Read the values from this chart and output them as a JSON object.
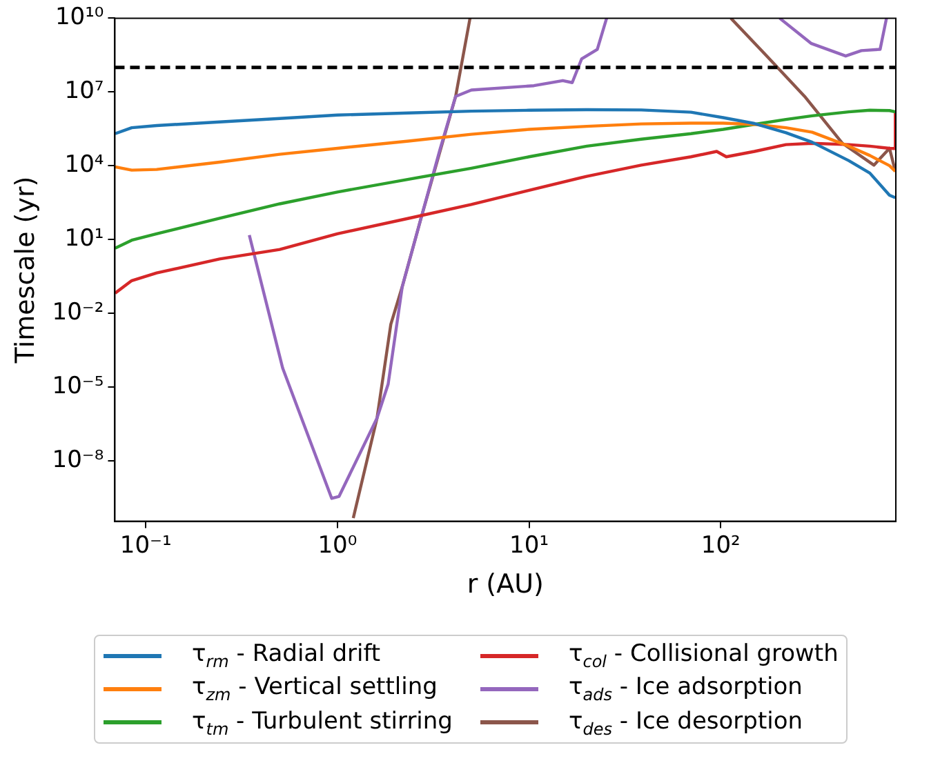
{
  "chart_data": {
    "type": "line",
    "xlabel": "r (AU)",
    "ylabel": "Timescale (yr)",
    "log": "xy",
    "grid": false,
    "legend": "bottom",
    "marker": "none",
    "line_style": "solid",
    "xlim": [
      0.069,
      820
    ],
    "ylim": [
      3.4e-11,
      10000000000.0
    ],
    "xticks": [
      {
        "value": 0.1,
        "label": "10⁻¹"
      },
      {
        "value": 1,
        "label": "10⁰"
      },
      {
        "value": 10,
        "label": "10¹"
      },
      {
        "value": 100,
        "label": "10²"
      }
    ],
    "yticks": [
      {
        "value": 1e-08,
        "label": "10⁻⁸"
      },
      {
        "value": 1e-05,
        "label": "10⁻⁵"
      },
      {
        "value": 0.01,
        "label": "10⁻²"
      },
      {
        "value": 10,
        "label": "10¹"
      },
      {
        "value": 10000,
        "label": "10⁴"
      },
      {
        "value": 10000000,
        "label": "10⁷"
      },
      {
        "value": 10000000000,
        "label": "10¹⁰"
      }
    ],
    "ref_lines": [
      {
        "axis": "y",
        "value": 100000000,
        "color": "#000000",
        "line_style": "dashed"
      }
    ],
    "x": [
      0.0692,
      0.0845,
      0.114,
      0.243,
      0.5,
      1,
      2.35,
      5,
      10,
      20,
      38.5,
      70,
      103,
      150,
      219,
      300,
      466,
      600,
      760,
      815
    ],
    "series": [
      {
        "name": "τ$_{rm}$ - Radial drift",
        "color": "#1f77b4",
        "values": [
          200000.0,
          350000.0,
          430000.0,
          600000.0,
          830000.0,
          1150000.0,
          1400000.0,
          1650000.0,
          1800000.0,
          1900000.0,
          1850000.0,
          1500000.0,
          900000.0,
          520000.0,
          220000.0,
          90000.0,
          16000.0,
          5000.0,
          630,
          500
        ]
      },
      {
        "name": "τ$_{zm}$ - Vertical settling",
        "color": "#ff7f0e",
        "values": [
          9000.0,
          6600.0,
          7000.0,
          14000.0,
          29000.0,
          51000.0,
          100000.0,
          190000.0,
          300000.0,
          400000.0,
          500000.0,
          540000.0,
          540000.0,
          480000.0,
          350000.0,
          230000.0,
          62000.0,
          26000.0,
          10000.0,
          5900.0
        ]
      },
      {
        "name": "τ$_{tm}$ - Turbulent stirring",
        "color": "#2ca02c",
        "values": [
          4.4,
          9.3,
          17,
          72,
          280,
          850,
          2800,
          7900,
          23000.0,
          62000.0,
          120000.0,
          200000.0,
          300000.0,
          480000.0,
          760000.0,
          1070000.0,
          1550000.0,
          1800000.0,
          1750000.0,
          1550000.0
        ]
      },
      {
        "name": "τ$_{col}$ - Collisional growth",
        "color": "#d62728",
        "x": [
          0.0692,
          0.0845,
          0.114,
          0.243,
          0.5,
          1,
          2.35,
          5,
          10,
          20,
          38.5,
          70,
          95.3,
          107,
          150,
          219,
          300,
          466,
          600,
          760,
          810,
          815
        ],
        "values": [
          0.065,
          0.21,
          0.43,
          1.6,
          3.9,
          17,
          72,
          263,
          1000,
          3700,
          10500.0,
          23000.0,
          38000.0,
          23000.0,
          38000.0,
          72000.0,
          81000.0,
          72000.0,
          62000.0,
          51000.0,
          50000.0,
          1500000.0
        ]
      },
      {
        "name": "τ$_{ads}$ - Ice adsorption",
        "color": "#9467bd",
        "x": [
          0.347,
          0.518,
          0.815,
          0.934,
          1.02,
          1.61,
          1.84,
          2.18,
          2.73,
          3.43,
          4.14,
          5,
          10.6,
          15,
          16.8,
          18.8,
          22.7,
          25.4,
          100,
          203,
          296,
          449,
          542,
          679,
          733
        ],
        "values": [
          15,
          5.8e-05,
          4.9e-09,
          2.9e-10,
          3.5e-10,
          5.4e-07,
          1.3e-05,
          0.12,
          72,
          46000.0,
          6600000.0,
          12000000.0,
          18000000.0,
          29000000.0,
          24000000.0,
          220000000.0,
          540000000.0,
          10000000000.0,
          null,
          10000000000.0,
          950000000.0,
          290000000.0,
          480000000.0,
          540000000.0,
          10000000000.0
        ]
      },
      {
        "name": "τ$_{des}$ - Ice desorption",
        "color": "#8c564b",
        "x": [
          1.21,
          1.61,
          1.9,
          2.18,
          2.73,
          4.14,
          4.92,
          100,
          113,
          174,
          274,
          432,
          630,
          760,
          815
        ],
        "values": [
          4.6e-11,
          5.4e-07,
          0.0035,
          0.12,
          72,
          6600000.0,
          10000000000.0,
          null,
          10000000000.0,
          290000000.0,
          6600000.0,
          81000.0,
          10500.0,
          51000.0,
          5900.0
        ]
      }
    ]
  }
}
